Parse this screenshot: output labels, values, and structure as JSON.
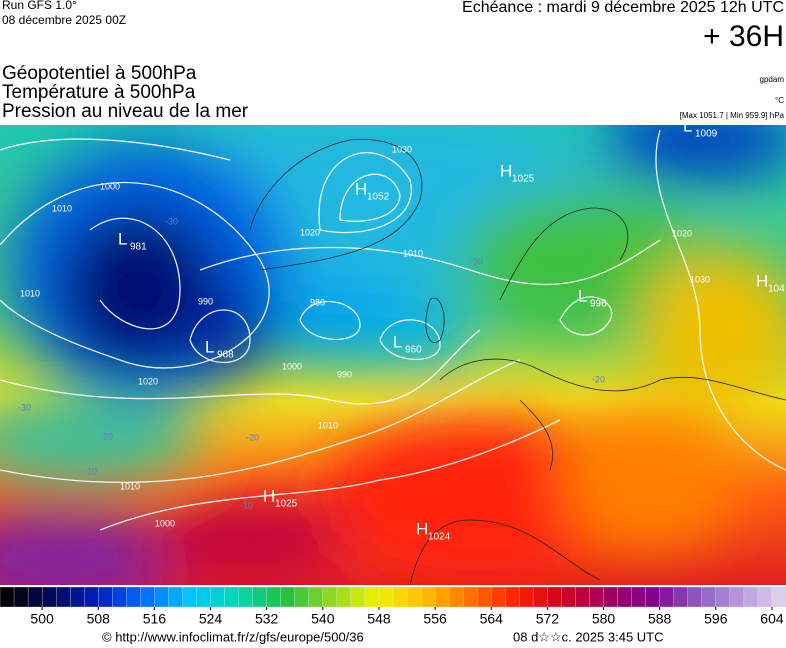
{
  "header": {
    "run": "Run GFS 1.0°",
    "run_date": "08 décembre 2025 00Z",
    "valid": "Echéance : mardi 9 décembre 2025 12h UTC",
    "lead": "+ 36H",
    "fields": [
      "Géopotentiel à 500hPa",
      "Température à 500hPa",
      "Pression au niveau de la mer"
    ],
    "units": [
      "gpdam",
      "°C"
    ],
    "pressure_range": "[Max 1051.7 | Min 959.9] hPa"
  },
  "centers": [
    {
      "letter": "L",
      "value": "981"
    },
    {
      "letter": "L",
      "value": "968"
    },
    {
      "letter": "L",
      "value": "960"
    },
    {
      "letter": "H",
      "value": "1052"
    },
    {
      "letter": "L",
      "value": "996"
    },
    {
      "letter": "H",
      "value": "1025"
    },
    {
      "letter": "H",
      "value": "1024"
    },
    {
      "letter": "L",
      "value": "1009"
    },
    {
      "letter": "H",
      "value": "1025"
    },
    {
      "letter": "H",
      "value": "104"
    }
  ],
  "isobar_labels": [
    "1010",
    "1000",
    "990",
    "980",
    "1010",
    "1020",
    "1010",
    "1020",
    "1000",
    "990",
    "1030",
    "1020",
    "1030",
    "1010",
    "1000",
    "1010"
  ],
  "temp_labels": [
    "-30",
    "-30",
    "-20",
    "-20",
    "-10",
    "-10",
    "-30",
    "-20"
  ],
  "colorbar": {
    "range": [
      494,
      606
    ],
    "ticks": [
      500,
      508,
      516,
      524,
      532,
      540,
      548,
      556,
      564,
      572,
      580,
      588,
      596,
      604
    ],
    "colors": [
      "#000000",
      "#000a60",
      "#0020c0",
      "#0070ff",
      "#00c8ff",
      "#00d8b0",
      "#20c040",
      "#90d820",
      "#f0f000",
      "#ffc000",
      "#ff7000",
      "#ff2000",
      "#d00020",
      "#a00060",
      "#800090",
      "#9060c0",
      "#c0a0e0",
      "#e8e0f0"
    ]
  },
  "footer": {
    "source": "© http://www.infoclimat.fr/z/gfs/europe/500/36",
    "stamp": "08 d☆☆c. 2025  3:45 UTC"
  }
}
